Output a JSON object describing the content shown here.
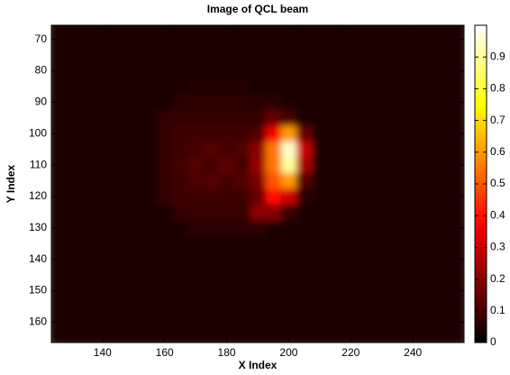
{
  "chart_data": {
    "type": "heatmap",
    "title": "Image of QCL beam",
    "xlabel": "X Index",
    "ylabel": "Y Index",
    "colormap": "hot",
    "x": [
      125,
      130,
      135,
      140,
      145,
      150,
      155,
      160,
      165,
      170,
      175,
      180,
      185,
      190,
      195,
      200,
      205,
      210,
      215,
      220,
      225,
      230,
      235,
      240,
      245,
      250,
      255
    ],
    "y": [
      65,
      70,
      75,
      80,
      85,
      90,
      95,
      100,
      105,
      110,
      115,
      120,
      125,
      130,
      135,
      140,
      145,
      150,
      155,
      160,
      165
    ],
    "z": [
      [
        0.04,
        0.04,
        0.04,
        0.04,
        0.04,
        0.04,
        0.04,
        0.04,
        0.04,
        0.04,
        0.04,
        0.04,
        0.04,
        0.04,
        0.04,
        0.04,
        0.04,
        0.04,
        0.04,
        0.04,
        0.04,
        0.04,
        0.04,
        0.04,
        0.04,
        0.04,
        0.04
      ],
      [
        0.04,
        0.04,
        0.04,
        0.04,
        0.04,
        0.04,
        0.04,
        0.04,
        0.04,
        0.04,
        0.04,
        0.04,
        0.04,
        0.04,
        0.04,
        0.04,
        0.04,
        0.04,
        0.04,
        0.04,
        0.04,
        0.04,
        0.04,
        0.04,
        0.04,
        0.04,
        0.04
      ],
      [
        0.04,
        0.04,
        0.04,
        0.04,
        0.04,
        0.04,
        0.04,
        0.04,
        0.04,
        0.04,
        0.04,
        0.04,
        0.04,
        0.04,
        0.04,
        0.04,
        0.04,
        0.04,
        0.04,
        0.04,
        0.04,
        0.04,
        0.04,
        0.04,
        0.04,
        0.04,
        0.04
      ],
      [
        0.04,
        0.04,
        0.04,
        0.04,
        0.04,
        0.04,
        0.04,
        0.04,
        0.04,
        0.04,
        0.04,
        0.04,
        0.04,
        0.04,
        0.04,
        0.04,
        0.04,
        0.04,
        0.04,
        0.04,
        0.04,
        0.04,
        0.04,
        0.04,
        0.04,
        0.04,
        0.04
      ],
      [
        0.04,
        0.04,
        0.04,
        0.04,
        0.04,
        0.04,
        0.04,
        0.04,
        0.04,
        0.05,
        0.05,
        0.05,
        0.05,
        0.04,
        0.04,
        0.04,
        0.04,
        0.04,
        0.04,
        0.04,
        0.04,
        0.04,
        0.04,
        0.04,
        0.04,
        0.04,
        0.04
      ],
      [
        0.04,
        0.04,
        0.04,
        0.04,
        0.04,
        0.04,
        0.04,
        0.04,
        0.06,
        0.06,
        0.06,
        0.06,
        0.06,
        0.06,
        0.06,
        0.04,
        0.04,
        0.04,
        0.04,
        0.04,
        0.04,
        0.04,
        0.04,
        0.04,
        0.04,
        0.04,
        0.04
      ],
      [
        0.04,
        0.04,
        0.04,
        0.04,
        0.04,
        0.04,
        0.04,
        0.07,
        0.07,
        0.07,
        0.07,
        0.07,
        0.07,
        0.07,
        0.15,
        0.1,
        0.04,
        0.04,
        0.04,
        0.04,
        0.04,
        0.04,
        0.04,
        0.04,
        0.04,
        0.04,
        0.04
      ],
      [
        0.04,
        0.04,
        0.04,
        0.04,
        0.04,
        0.04,
        0.04,
        0.07,
        0.09,
        0.09,
        0.09,
        0.09,
        0.09,
        0.12,
        0.35,
        0.6,
        0.15,
        0.04,
        0.04,
        0.04,
        0.04,
        0.04,
        0.04,
        0.04,
        0.04,
        0.04,
        0.04
      ],
      [
        0.04,
        0.04,
        0.04,
        0.04,
        0.04,
        0.04,
        0.04,
        0.08,
        0.09,
        0.1,
        0.12,
        0.1,
        0.12,
        0.2,
        0.55,
        0.95,
        0.3,
        0.04,
        0.04,
        0.04,
        0.04,
        0.04,
        0.04,
        0.04,
        0.04,
        0.04,
        0.04
      ],
      [
        0.04,
        0.04,
        0.04,
        0.04,
        0.04,
        0.04,
        0.04,
        0.08,
        0.1,
        0.12,
        0.1,
        0.14,
        0.1,
        0.22,
        0.55,
        0.9,
        0.25,
        0.04,
        0.04,
        0.04,
        0.04,
        0.04,
        0.04,
        0.04,
        0.04,
        0.04,
        0.04
      ],
      [
        0.04,
        0.04,
        0.04,
        0.04,
        0.04,
        0.04,
        0.04,
        0.08,
        0.09,
        0.11,
        0.12,
        0.1,
        0.12,
        0.18,
        0.5,
        0.6,
        0.12,
        0.04,
        0.04,
        0.04,
        0.04,
        0.04,
        0.04,
        0.04,
        0.04,
        0.04,
        0.04
      ],
      [
        0.04,
        0.04,
        0.04,
        0.04,
        0.04,
        0.04,
        0.04,
        0.07,
        0.09,
        0.09,
        0.09,
        0.09,
        0.09,
        0.15,
        0.4,
        0.3,
        0.06,
        0.04,
        0.04,
        0.04,
        0.04,
        0.04,
        0.04,
        0.04,
        0.04,
        0.04,
        0.04
      ],
      [
        0.04,
        0.04,
        0.04,
        0.04,
        0.04,
        0.04,
        0.04,
        0.04,
        0.08,
        0.08,
        0.08,
        0.08,
        0.08,
        0.2,
        0.2,
        0.08,
        0.04,
        0.04,
        0.04,
        0.04,
        0.04,
        0.04,
        0.04,
        0.04,
        0.04,
        0.04,
        0.04
      ],
      [
        0.04,
        0.04,
        0.04,
        0.04,
        0.04,
        0.04,
        0.04,
        0.04,
        0.04,
        0.06,
        0.06,
        0.06,
        0.06,
        0.06,
        0.04,
        0.04,
        0.04,
        0.04,
        0.04,
        0.04,
        0.04,
        0.04,
        0.04,
        0.04,
        0.04,
        0.04,
        0.04
      ],
      [
        0.04,
        0.04,
        0.04,
        0.04,
        0.04,
        0.04,
        0.04,
        0.04,
        0.04,
        0.04,
        0.04,
        0.04,
        0.04,
        0.04,
        0.04,
        0.04,
        0.04,
        0.04,
        0.04,
        0.04,
        0.04,
        0.04,
        0.04,
        0.04,
        0.04,
        0.04,
        0.04
      ],
      [
        0.04,
        0.04,
        0.04,
        0.04,
        0.04,
        0.04,
        0.04,
        0.04,
        0.04,
        0.04,
        0.04,
        0.04,
        0.04,
        0.04,
        0.04,
        0.04,
        0.04,
        0.04,
        0.04,
        0.04,
        0.04,
        0.04,
        0.04,
        0.04,
        0.04,
        0.04,
        0.04
      ],
      [
        0.04,
        0.04,
        0.04,
        0.04,
        0.04,
        0.04,
        0.04,
        0.04,
        0.04,
        0.04,
        0.04,
        0.04,
        0.04,
        0.04,
        0.04,
        0.04,
        0.04,
        0.04,
        0.04,
        0.04,
        0.04,
        0.04,
        0.04,
        0.04,
        0.04,
        0.04,
        0.04
      ],
      [
        0.04,
        0.04,
        0.04,
        0.04,
        0.04,
        0.04,
        0.04,
        0.04,
        0.04,
        0.04,
        0.04,
        0.04,
        0.04,
        0.04,
        0.04,
        0.04,
        0.04,
        0.04,
        0.04,
        0.04,
        0.04,
        0.04,
        0.04,
        0.04,
        0.04,
        0.04,
        0.04
      ],
      [
        0.04,
        0.04,
        0.04,
        0.04,
        0.04,
        0.04,
        0.04,
        0.04,
        0.04,
        0.04,
        0.04,
        0.04,
        0.04,
        0.04,
        0.04,
        0.04,
        0.04,
        0.04,
        0.04,
        0.04,
        0.04,
        0.04,
        0.04,
        0.04,
        0.04,
        0.04,
        0.04
      ],
      [
        0.04,
        0.04,
        0.04,
        0.04,
        0.04,
        0.04,
        0.04,
        0.04,
        0.04,
        0.04,
        0.04,
        0.04,
        0.04,
        0.04,
        0.04,
        0.04,
        0.04,
        0.04,
        0.04,
        0.04,
        0.04,
        0.04,
        0.04,
        0.04,
        0.04,
        0.04,
        0.04
      ],
      [
        0.04,
        0.04,
        0.04,
        0.04,
        0.04,
        0.04,
        0.04,
        0.04,
        0.04,
        0.04,
        0.04,
        0.04,
        0.04,
        0.04,
        0.04,
        0.04,
        0.04,
        0.04,
        0.04,
        0.04,
        0.04,
        0.04,
        0.04,
        0.04,
        0.04,
        0.04,
        0.04
      ]
    ],
    "xlim": [
      123.5,
      256.5
    ],
    "ylim": [
      65.5,
      166.5
    ],
    "y_reversed": true,
    "xticks": [
      140,
      160,
      180,
      200,
      220,
      240
    ],
    "yticks": [
      70,
      80,
      90,
      100,
      110,
      120,
      130,
      140,
      150,
      160
    ],
    "clim": [
      0,
      1
    ],
    "cticks": [
      0,
      0.1,
      0.2,
      0.3,
      0.4,
      0.5,
      0.6,
      0.7,
      0.8,
      0.9
    ]
  }
}
